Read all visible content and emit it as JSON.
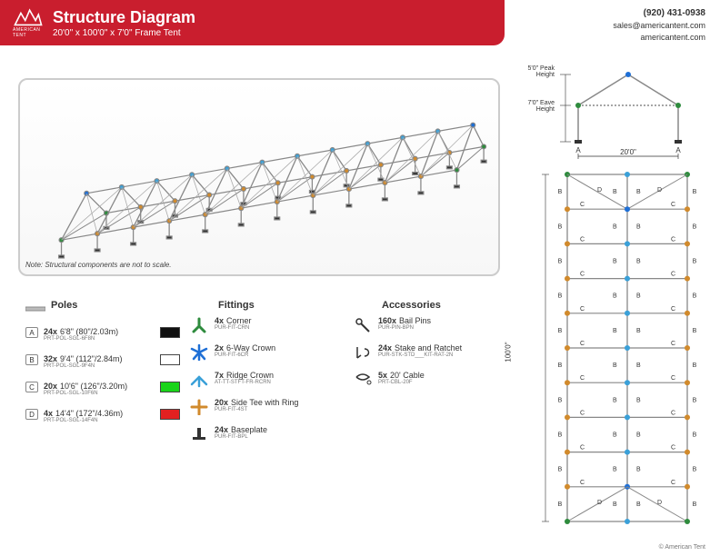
{
  "brand": {
    "name": "AMERICAN TENT",
    "logo_color": "#ffffff"
  },
  "header": {
    "bg": "#c91e2e",
    "title": "Structure Diagram",
    "subtitle": "20'0\" x 100'0\" x 7'0\" Frame Tent"
  },
  "contact": {
    "phone": "(920) 431-0938",
    "email": "sales@americantent.com",
    "web": "americantent.com"
  },
  "iso_note": "Note: Structural components are not to scale.",
  "colors": {
    "corner": "#2e8b3d",
    "crown6": "#1e6fd6",
    "ridge": "#3aa0d8",
    "side_tee": "#d18a2c",
    "baseplate": "#333333",
    "pole": "#888888",
    "panel_border": "#cccccc"
  },
  "poles_heading": "Poles",
  "poles": [
    {
      "letter": "A",
      "qty": "24x",
      "desc": "6'8\" (80\"/2.03m)",
      "sku": "PRT-POL-SGL-6F8N",
      "swatch": "#111111"
    },
    {
      "letter": "B",
      "qty": "32x",
      "desc": "9'4\" (112\"/2.84m)",
      "sku": "PRT-POL-SGL-9F4N",
      "swatch": "#ffffff"
    },
    {
      "letter": "C",
      "qty": "20x",
      "desc": "10'6\" (126\"/3.20m)",
      "sku": "PRT-POL-SGL-10F6N",
      "swatch": "#19d419"
    },
    {
      "letter": "D",
      "qty": "4x",
      "desc": "14'4\" (172\"/4.36m)",
      "sku": "PRT-POL-SGL-14F4N",
      "swatch": "#e22020"
    }
  ],
  "fittings_heading": "Fittings",
  "fittings": [
    {
      "icon": "corner",
      "color": "#2e8b3d",
      "qty": "4x",
      "desc": "Corner",
      "sku": "PUR-FIT-CRN"
    },
    {
      "icon": "crown6",
      "color": "#1e6fd6",
      "qty": "2x",
      "desc": "6-Way Crown",
      "sku": "PUR-FIT-6CR"
    },
    {
      "icon": "ridge",
      "color": "#3aa0d8",
      "qty": "7x",
      "desc": "Ridge Crown",
      "sku": "AT-TT-STFT-FR-RCRN"
    },
    {
      "icon": "sidetee",
      "color": "#d18a2c",
      "qty": "20x",
      "desc": "Side Tee with Ring",
      "sku": "PUR-FIT-4ST"
    },
    {
      "icon": "baseplate",
      "color": "#333333",
      "qty": "24x",
      "desc": "Baseplate",
      "sku": "PUR-FIT-BPL"
    }
  ],
  "accessories_heading": "Accessories",
  "accessories": [
    {
      "icon": "pin",
      "qty": "160x",
      "desc": "Bail Pins",
      "sku": "PUR-PIN-BPN"
    },
    {
      "icon": "stake",
      "qty": "24x",
      "desc": "Stake and Ratchet",
      "sku": "PUR-STK-STD___KIT-RAT-2N"
    },
    {
      "icon": "cable",
      "qty": "5x",
      "desc": "20' Cable",
      "sku": "PRT-CBL-20F"
    }
  ],
  "profile": {
    "peak_label": "5'0\"\nPeak\nHeight",
    "eave_label": "7'0\"\nEave\nHeight",
    "width_label": "20'0\"",
    "letter_a": "A"
  },
  "plan": {
    "length_label": "100'0\"",
    "letters": {
      "b": "B",
      "c": "C",
      "d": "D"
    }
  },
  "copyright": "© American Tent"
}
